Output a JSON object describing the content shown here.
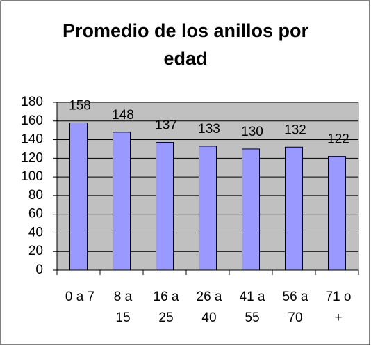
{
  "chart_data": {
    "type": "bar",
    "title": "Promedio de los anillos por edad",
    "categories": [
      "0 a 7",
      "8 a 15",
      "16 a 25",
      "26 a 40",
      "41 a 55",
      "56 a 70",
      "71 o +"
    ],
    "values": [
      158,
      148,
      137,
      133,
      130,
      132,
      122
    ],
    "color": "#9999ff",
    "plot_background": "#c0c0c0",
    "ylim": [
      0,
      180
    ],
    "yticks": [
      0,
      20,
      40,
      60,
      80,
      100,
      120,
      140,
      160,
      180
    ],
    "grid": true
  }
}
